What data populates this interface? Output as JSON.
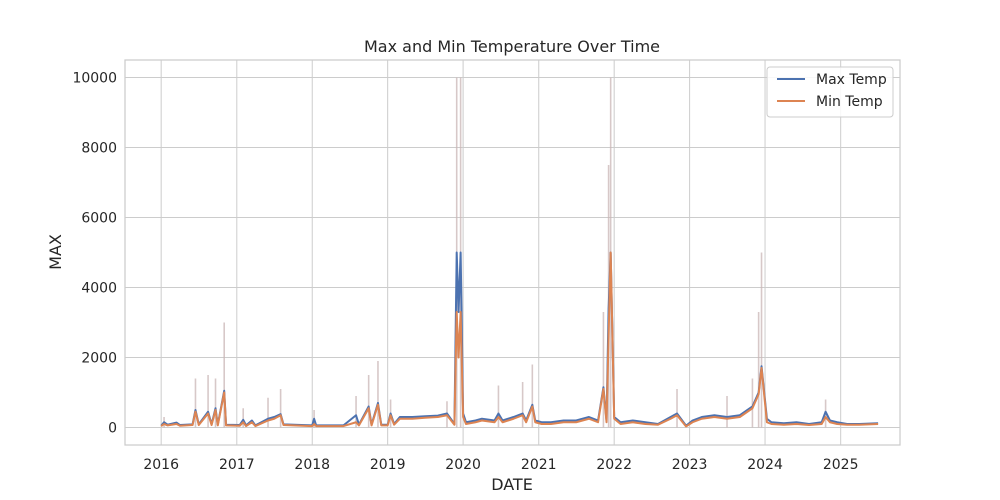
{
  "chart_data": {
    "type": "line",
    "title": "Max and Min Temperature Over Time",
    "xlabel": "DATE",
    "ylabel": "MAX",
    "xlim": [
      "2015-07-10",
      "2025-10-15"
    ],
    "ylim": [
      -500,
      10500
    ],
    "x_ticks": [
      "2016",
      "2017",
      "2018",
      "2019",
      "2020",
      "2021",
      "2022",
      "2023",
      "2024",
      "2025"
    ],
    "y_ticks": [
      0,
      2000,
      4000,
      6000,
      8000,
      10000
    ],
    "grid": true,
    "legend": "top-right",
    "colors": {
      "max": "#4c72b0",
      "min": "#dd8452",
      "band": "#c9b5b5",
      "grid": "#cccccc",
      "frame": "#cccccc",
      "background": "#ffffff"
    },
    "series": [
      {
        "name": "Max Temp",
        "points": [
          [
            "2016-01-01",
            50
          ],
          [
            "2016-01-15",
            150
          ],
          [
            "2016-02-01",
            80
          ],
          [
            "2016-03-15",
            140
          ],
          [
            "2016-04-01",
            70
          ],
          [
            "2016-06-01",
            90
          ],
          [
            "2016-06-15",
            500
          ],
          [
            "2016-07-01",
            90
          ],
          [
            "2016-08-15",
            450
          ],
          [
            "2016-09-01",
            90
          ],
          [
            "2016-09-20",
            550
          ],
          [
            "2016-10-01",
            80
          ],
          [
            "2016-11-01",
            1050
          ],
          [
            "2016-11-10",
            80
          ],
          [
            "2017-01-15",
            70
          ],
          [
            "2017-02-01",
            220
          ],
          [
            "2017-02-15",
            60
          ],
          [
            "2017-03-15",
            200
          ],
          [
            "2017-04-01",
            60
          ],
          [
            "2017-06-01",
            250
          ],
          [
            "2017-07-01",
            300
          ],
          [
            "2017-08-01",
            380
          ],
          [
            "2017-08-15",
            90
          ],
          [
            "2018-01-01",
            60
          ],
          [
            "2018-01-10",
            250
          ],
          [
            "2018-01-20",
            60
          ],
          [
            "2018-06-01",
            60
          ],
          [
            "2018-08-01",
            350
          ],
          [
            "2018-08-15",
            80
          ],
          [
            "2018-10-01",
            600
          ],
          [
            "2018-10-15",
            80
          ],
          [
            "2018-11-15",
            700
          ],
          [
            "2018-12-01",
            80
          ],
          [
            "2019-01-01",
            80
          ],
          [
            "2019-01-15",
            400
          ],
          [
            "2019-02-01",
            100
          ],
          [
            "2019-03-01",
            300
          ],
          [
            "2019-05-01",
            300
          ],
          [
            "2019-07-01",
            320
          ],
          [
            "2019-09-01",
            340
          ],
          [
            "2019-10-15",
            400
          ],
          [
            "2019-11-20",
            100
          ],
          [
            "2019-12-01",
            5000
          ],
          [
            "2019-12-10",
            3300
          ],
          [
            "2019-12-20",
            5000
          ],
          [
            "2020-01-01",
            400
          ],
          [
            "2020-01-15",
            150
          ],
          [
            "2020-03-01",
            200
          ],
          [
            "2020-04-01",
            250
          ],
          [
            "2020-06-01",
            200
          ],
          [
            "2020-06-20",
            400
          ],
          [
            "2020-07-10",
            200
          ],
          [
            "2020-09-01",
            300
          ],
          [
            "2020-10-15",
            400
          ],
          [
            "2020-11-01",
            200
          ],
          [
            "2020-12-01",
            650
          ],
          [
            "2020-12-15",
            200
          ],
          [
            "2021-01-15",
            150
          ],
          [
            "2021-03-01",
            150
          ],
          [
            "2021-05-01",
            200
          ],
          [
            "2021-07-01",
            200
          ],
          [
            "2021-09-01",
            300
          ],
          [
            "2021-10-15",
            200
          ],
          [
            "2021-11-10",
            1150
          ],
          [
            "2021-11-25",
            200
          ],
          [
            "2021-12-05",
            3400
          ],
          [
            "2021-12-15",
            5000
          ],
          [
            "2022-01-01",
            300
          ],
          [
            "2022-02-01",
            150
          ],
          [
            "2022-04-01",
            200
          ],
          [
            "2022-06-01",
            150
          ],
          [
            "2022-08-01",
            100
          ],
          [
            "2022-10-01",
            300
          ],
          [
            "2022-11-01",
            400
          ],
          [
            "2022-12-15",
            50
          ],
          [
            "2023-01-15",
            200
          ],
          [
            "2023-03-01",
            300
          ],
          [
            "2023-05-01",
            350
          ],
          [
            "2023-07-01",
            300
          ],
          [
            "2023-09-01",
            350
          ],
          [
            "2023-11-01",
            600
          ],
          [
            "2023-12-01",
            1000
          ],
          [
            "2023-12-15",
            1750
          ],
          [
            "2024-01-10",
            250
          ],
          [
            "2024-02-01",
            150
          ],
          [
            "2024-04-01",
            120
          ],
          [
            "2024-06-01",
            150
          ],
          [
            "2024-08-01",
            100
          ],
          [
            "2024-10-01",
            150
          ],
          [
            "2024-10-20",
            450
          ],
          [
            "2024-11-10",
            200
          ],
          [
            "2024-12-15",
            150
          ],
          [
            "2025-02-01",
            100
          ],
          [
            "2025-04-01",
            100
          ],
          [
            "2025-07-01",
            120
          ]
        ]
      },
      {
        "name": "Min Temp",
        "points": [
          [
            "2016-01-01",
            40
          ],
          [
            "2016-01-15",
            100
          ],
          [
            "2016-02-01",
            60
          ],
          [
            "2016-03-15",
            100
          ],
          [
            "2016-04-01",
            50
          ],
          [
            "2016-06-01",
            70
          ],
          [
            "2016-06-15",
            450
          ],
          [
            "2016-07-01",
            70
          ],
          [
            "2016-08-15",
            400
          ],
          [
            "2016-09-01",
            70
          ],
          [
            "2016-09-20",
            500
          ],
          [
            "2016-10-01",
            60
          ],
          [
            "2016-11-01",
            1000
          ],
          [
            "2016-11-10",
            60
          ],
          [
            "2017-01-15",
            50
          ],
          [
            "2017-02-01",
            150
          ],
          [
            "2017-02-15",
            40
          ],
          [
            "2017-03-15",
            150
          ],
          [
            "2017-04-01",
            40
          ],
          [
            "2017-06-01",
            200
          ],
          [
            "2017-07-01",
            250
          ],
          [
            "2017-08-01",
            350
          ],
          [
            "2017-08-15",
            70
          ],
          [
            "2018-01-01",
            40
          ],
          [
            "2018-01-10",
            100
          ],
          [
            "2018-01-20",
            40
          ],
          [
            "2018-06-01",
            40
          ],
          [
            "2018-08-01",
            150
          ],
          [
            "2018-08-15",
            60
          ],
          [
            "2018-10-01",
            550
          ],
          [
            "2018-10-15",
            60
          ],
          [
            "2018-11-15",
            650
          ],
          [
            "2018-12-01",
            60
          ],
          [
            "2019-01-01",
            60
          ],
          [
            "2019-01-15",
            350
          ],
          [
            "2019-02-01",
            80
          ],
          [
            "2019-03-01",
            250
          ],
          [
            "2019-05-01",
            250
          ],
          [
            "2019-07-01",
            280
          ],
          [
            "2019-09-01",
            300
          ],
          [
            "2019-10-15",
            350
          ],
          [
            "2019-11-20",
            80
          ],
          [
            "2019-12-01",
            3300
          ],
          [
            "2019-12-10",
            2000
          ],
          [
            "2019-12-20",
            3300
          ],
          [
            "2020-01-01",
            300
          ],
          [
            "2020-01-15",
            100
          ],
          [
            "2020-03-01",
            150
          ],
          [
            "2020-04-01",
            200
          ],
          [
            "2020-06-01",
            150
          ],
          [
            "2020-06-20",
            300
          ],
          [
            "2020-07-10",
            150
          ],
          [
            "2020-09-01",
            250
          ],
          [
            "2020-10-15",
            350
          ],
          [
            "2020-11-01",
            150
          ],
          [
            "2020-12-01",
            600
          ],
          [
            "2020-12-15",
            150
          ],
          [
            "2021-01-15",
            100
          ],
          [
            "2021-03-01",
            100
          ],
          [
            "2021-05-01",
            150
          ],
          [
            "2021-07-01",
            150
          ],
          [
            "2021-09-01",
            250
          ],
          [
            "2021-10-15",
            150
          ],
          [
            "2021-11-10",
            1100
          ],
          [
            "2021-11-25",
            150
          ],
          [
            "2021-12-05",
            2600
          ],
          [
            "2021-12-15",
            5000
          ],
          [
            "2022-01-01",
            250
          ],
          [
            "2022-02-01",
            100
          ],
          [
            "2022-04-01",
            150
          ],
          [
            "2022-06-01",
            100
          ],
          [
            "2022-08-01",
            80
          ],
          [
            "2022-10-01",
            250
          ],
          [
            "2022-11-01",
            350
          ],
          [
            "2022-12-15",
            30
          ],
          [
            "2023-01-15",
            150
          ],
          [
            "2023-03-01",
            250
          ],
          [
            "2023-05-01",
            300
          ],
          [
            "2023-07-01",
            250
          ],
          [
            "2023-09-01",
            300
          ],
          [
            "2023-11-01",
            550
          ],
          [
            "2023-12-01",
            950
          ],
          [
            "2023-12-15",
            1700
          ],
          [
            "2024-01-10",
            150
          ],
          [
            "2024-02-01",
            100
          ],
          [
            "2024-04-01",
            80
          ],
          [
            "2024-06-01",
            100
          ],
          [
            "2024-08-01",
            70
          ],
          [
            "2024-10-01",
            100
          ],
          [
            "2024-10-20",
            300
          ],
          [
            "2024-11-10",
            150
          ],
          [
            "2024-12-15",
            100
          ],
          [
            "2025-02-01",
            80
          ],
          [
            "2025-04-01",
            80
          ],
          [
            "2025-07-01",
            100
          ]
        ]
      }
    ],
    "spikes_upper": [
      [
        "2016-01-15",
        300
      ],
      [
        "2016-06-15",
        1400
      ],
      [
        "2016-08-15",
        1500
      ],
      [
        "2016-09-20",
        1400
      ],
      [
        "2016-11-01",
        3000
      ],
      [
        "2017-02-01",
        550
      ],
      [
        "2017-06-01",
        850
      ],
      [
        "2017-08-01",
        1100
      ],
      [
        "2018-01-10",
        500
      ],
      [
        "2018-08-01",
        900
      ],
      [
        "2018-10-01",
        1500
      ],
      [
        "2018-11-15",
        1900
      ],
      [
        "2019-01-15",
        800
      ],
      [
        "2019-10-15",
        750
      ],
      [
        "2019-12-01",
        10000
      ],
      [
        "2019-12-20",
        10000
      ],
      [
        "2020-06-20",
        1200
      ],
      [
        "2020-10-15",
        1300
      ],
      [
        "2020-12-01",
        1800
      ],
      [
        "2021-11-10",
        3300
      ],
      [
        "2021-12-05",
        7500
      ],
      [
        "2021-12-15",
        10000
      ],
      [
        "2022-11-01",
        1100
      ],
      [
        "2023-07-01",
        900
      ],
      [
        "2023-11-01",
        1400
      ],
      [
        "2023-12-01",
        3300
      ],
      [
        "2023-12-15",
        5000
      ],
      [
        "2024-10-20",
        800
      ]
    ]
  }
}
